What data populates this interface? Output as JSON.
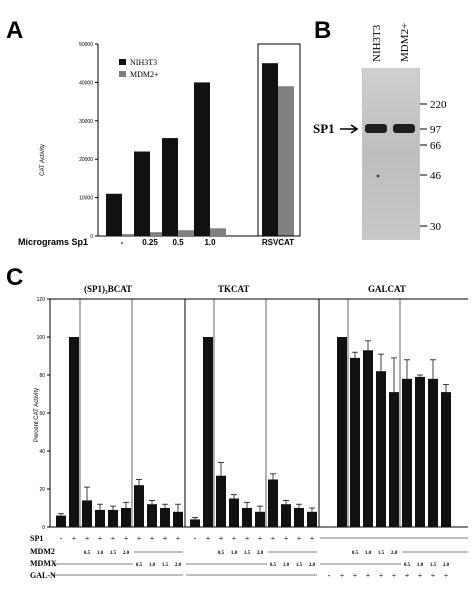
{
  "panels": {
    "A": {
      "label": "A",
      "chart_data": {
        "type": "bar",
        "ylabel": "CAT Activity",
        "xlabel": "Micrograms Sp1",
        "categories": [
          "-",
          "0.25",
          "0.5",
          "1.0",
          "RSVCAT"
        ],
        "ylim": [
          0,
          50000
        ],
        "yticks": [
          "50000",
          "40000",
          "30000",
          "20000",
          "10000",
          "0"
        ],
        "series": [
          {
            "name": "NIH3T3",
            "color": "#111111",
            "values": [
              11000,
              22000,
              25500,
              40000,
              45000
            ]
          },
          {
            "name": "MDM2+",
            "color": "#808080",
            "values": [
              500,
              1000,
              1500,
              2000,
              39000
            ]
          }
        ],
        "legend": "top-left",
        "divider_before": "RSVCAT"
      }
    },
    "B": {
      "label": "B",
      "lanes": [
        "NIH3T3",
        "MDM2+"
      ],
      "band_label": "SP1",
      "markers": [
        "220",
        "97",
        "66",
        "46",
        "30"
      ],
      "colors": {
        "blot": "#bdbdbd",
        "band": "#222222"
      }
    },
    "C": {
      "label": "C",
      "ylabel": "Percent CAT Activity",
      "group_titles": [
        "(SP1)₃BCAT",
        "TKCAT",
        "GALCAT"
      ],
      "chart_data": {
        "type": "bar",
        "ylim": [
          0,
          120
        ],
        "yticks": [
          "120",
          "100",
          "80",
          "60",
          "40",
          "20",
          "0"
        ],
        "groups": [
          {
            "title": "(SP1)₃BCAT",
            "values": [
              6,
              100,
              14,
              9,
              9,
              10,
              22,
              12,
              10,
              8
            ],
            "errors": [
              1,
              0,
              7,
              3,
              2,
              3,
              3,
              2,
              2,
              4
            ]
          },
          {
            "title": "TKCAT",
            "values": [
              4,
              100,
              27,
              15,
              10,
              8,
              25,
              12,
              10,
              8
            ],
            "errors": [
              1,
              0,
              7,
              2,
              3,
              3,
              3,
              2,
              2,
              2
            ]
          },
          {
            "title": "GALCAT",
            "values": [
              0,
              100,
              89,
              93,
              82,
              71,
              78,
              79,
              78,
              71
            ],
            "errors": [
              0,
              0,
              3,
              5,
              9,
              18,
              10,
              1,
              10,
              4
            ]
          }
        ]
      },
      "rows": {
        "sp1": {
          "label": "SP1",
          "symbols": [
            "-",
            "+",
            "+",
            "+",
            "+",
            "+",
            "+",
            "+",
            "+",
            "+"
          ]
        },
        "mdm2": {
          "label": "MDM2",
          "values": [
            "0.5",
            "1.0",
            "1.5",
            "2.0"
          ]
        },
        "mdmx": {
          "label": "MDMX",
          "values": [
            "0.5",
            "1.0",
            "1.5",
            "2.0"
          ]
        },
        "galn": {
          "label": "GAL-N",
          "symbols": [
            "-",
            "+",
            "+",
            "+",
            "+",
            "+",
            "+",
            "+",
            "+",
            "+"
          ]
        }
      }
    }
  }
}
